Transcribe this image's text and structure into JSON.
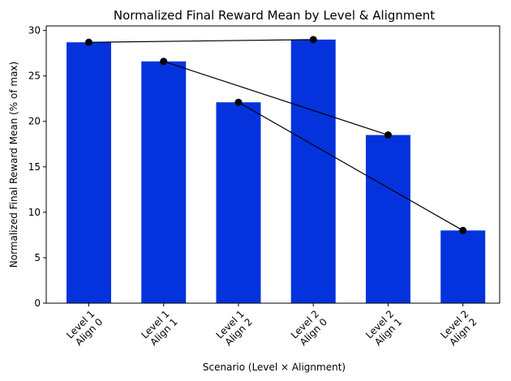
{
  "chart_data": {
    "type": "bar",
    "title": "Normalized Final Reward Mean by Level & Alignment",
    "xlabel": "Scenario (Level × Alignment)",
    "ylabel": "Normalized Final Reward Mean (% of max)",
    "categories": [
      [
        "Level 1",
        "Align 0"
      ],
      [
        "Level 1",
        "Align 1"
      ],
      [
        "Level 1",
        "Align 2"
      ],
      [
        "Level 2",
        "Align 0"
      ],
      [
        "Level 2",
        "Align 1"
      ],
      [
        "Level 2",
        "Align 2"
      ]
    ],
    "values": [
      28.7,
      26.6,
      22.1,
      29.0,
      18.5,
      8.0
    ],
    "ylim": [
      0,
      30.5
    ],
    "yticks": [
      0,
      5,
      10,
      15,
      20,
      25,
      30
    ],
    "grid": false,
    "bar_color": "#0433dd",
    "marker_color": "#000000",
    "connector_pairs": [
      [
        0,
        3
      ],
      [
        1,
        4
      ],
      [
        2,
        5
      ]
    ]
  }
}
